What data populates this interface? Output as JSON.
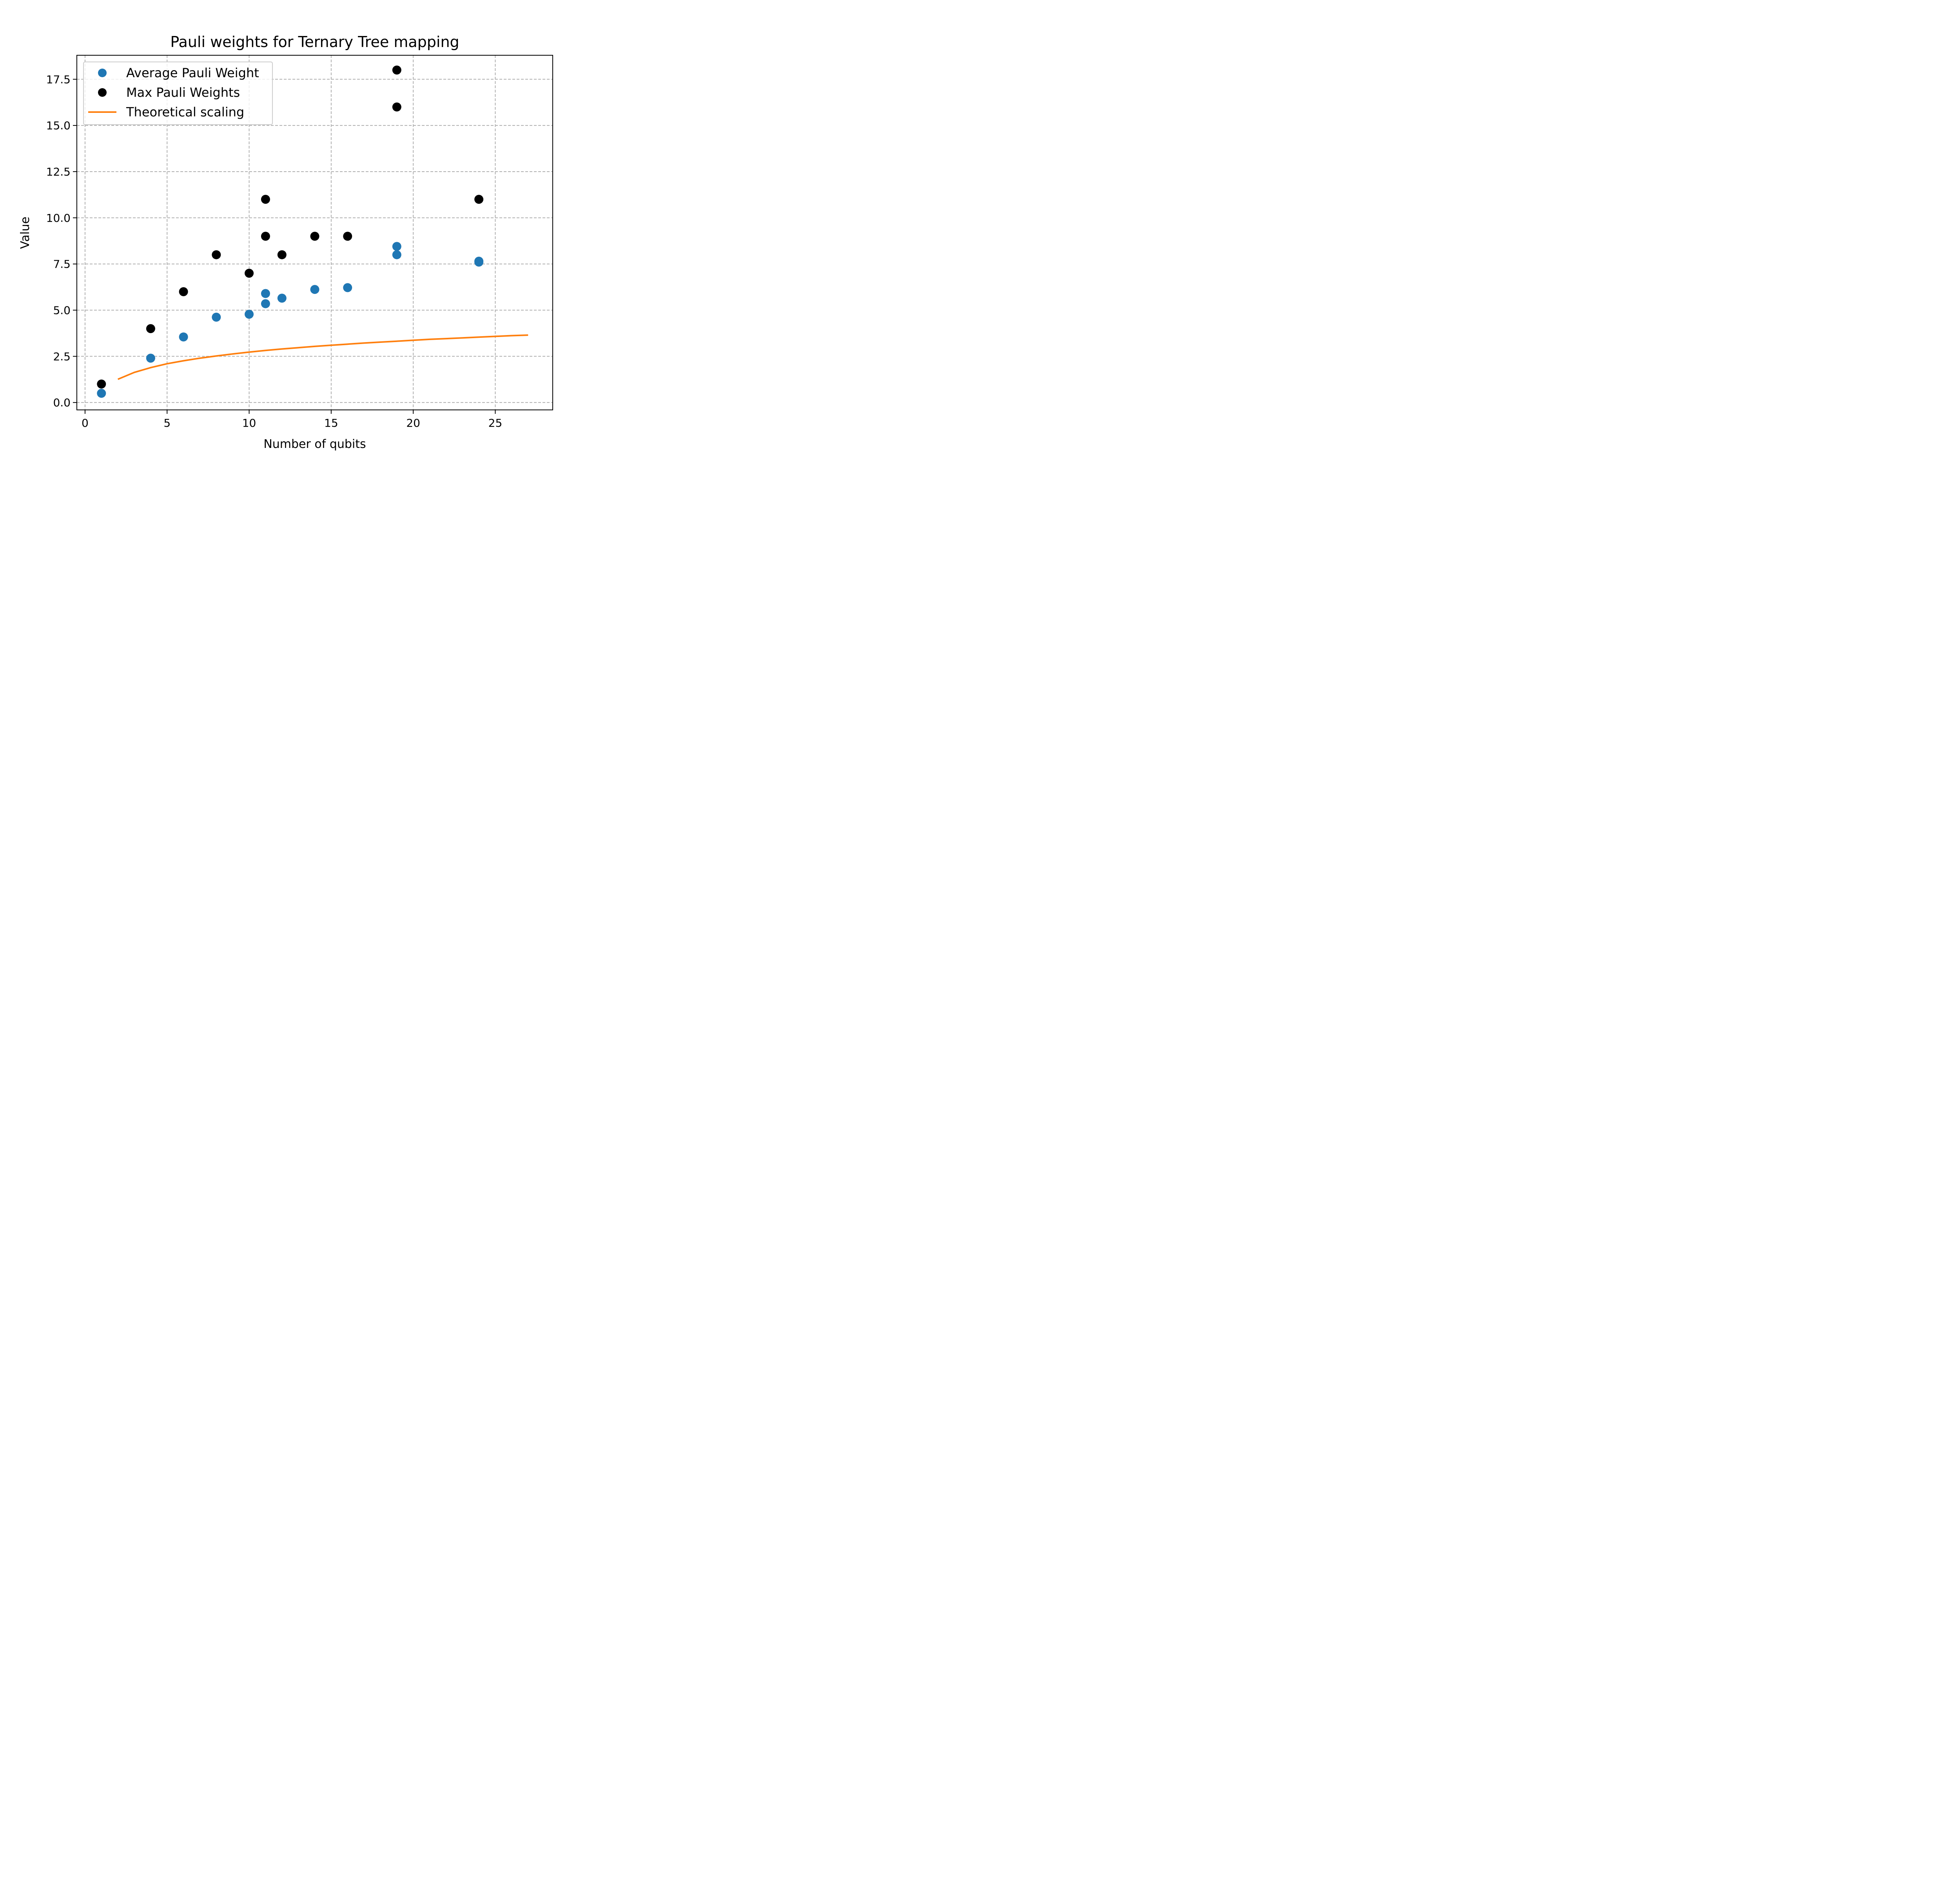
{
  "chart_data": {
    "type": "scatter",
    "title": "Pauli weights for Ternary Tree mapping",
    "xlabel": "Number of qubits",
    "ylabel": "Value",
    "xlim": [
      -0.5,
      28.5
    ],
    "ylim": [
      -0.4,
      18.8
    ],
    "xticks": [
      0,
      5,
      10,
      15,
      20,
      25
    ],
    "xtick_labels": [
      "0",
      "5",
      "10",
      "15",
      "20",
      "25"
    ],
    "yticks": [
      0,
      2.5,
      5,
      7.5,
      10,
      12.5,
      15,
      17.5
    ],
    "ytick_labels": [
      "0.0",
      "2.5",
      "5.0",
      "7.5",
      "10.0",
      "12.5",
      "15.0",
      "17.5"
    ],
    "grid": true,
    "legend_position": "upper-left",
    "series": [
      {
        "name": "Average Pauli Weight",
        "kind": "scatter",
        "color": "#1f77b4",
        "points": [
          [
            1,
            0.5
          ],
          [
            4,
            2.4
          ],
          [
            6,
            3.55
          ],
          [
            8,
            4.62
          ],
          [
            10,
            4.78
          ],
          [
            11,
            5.35
          ],
          [
            11,
            5.9
          ],
          [
            12,
            5.65
          ],
          [
            14,
            6.12
          ],
          [
            16,
            6.22
          ],
          [
            19,
            8.0
          ],
          [
            19,
            8.45
          ],
          [
            24,
            7.6
          ],
          [
            24,
            7.65
          ]
        ]
      },
      {
        "name": "Max Pauli Weights",
        "kind": "scatter",
        "color": "#000000",
        "points": [
          [
            1,
            1
          ],
          [
            4,
            4
          ],
          [
            6,
            6
          ],
          [
            8,
            8
          ],
          [
            10,
            7
          ],
          [
            11,
            9
          ],
          [
            11,
            11
          ],
          [
            12,
            8
          ],
          [
            14,
            9
          ],
          [
            16,
            9
          ],
          [
            19,
            16
          ],
          [
            19,
            18
          ],
          [
            24,
            11
          ]
        ]
      },
      {
        "name": "Theoretical scaling",
        "kind": "line",
        "color": "#ff7f0e",
        "points": [
          [
            2,
            1.26
          ],
          [
            3,
            1.63
          ],
          [
            4,
            1.89
          ],
          [
            5,
            2.1
          ],
          [
            6,
            2.26
          ],
          [
            7,
            2.4
          ],
          [
            8,
            2.52
          ],
          [
            9,
            2.63
          ],
          [
            10,
            2.73
          ],
          [
            11,
            2.82
          ],
          [
            12,
            2.9
          ],
          [
            13,
            2.97
          ],
          [
            14,
            3.04
          ],
          [
            15,
            3.1
          ],
          [
            16,
            3.16
          ],
          [
            17,
            3.22
          ],
          [
            18,
            3.27
          ],
          [
            19,
            3.32
          ],
          [
            20,
            3.37
          ],
          [
            21,
            3.42
          ],
          [
            22,
            3.46
          ],
          [
            23,
            3.5
          ],
          [
            24,
            3.54
          ],
          [
            25,
            3.58
          ],
          [
            26,
            3.62
          ],
          [
            27,
            3.65
          ]
        ]
      }
    ]
  }
}
